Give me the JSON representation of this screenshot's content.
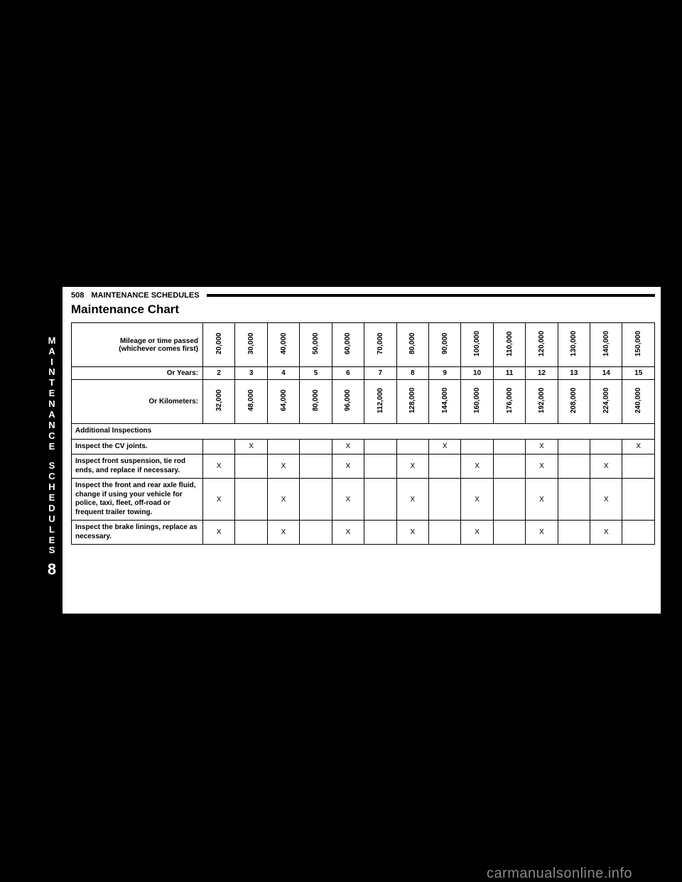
{
  "side_tab": {
    "word1": [
      "M",
      "A",
      "I",
      "N",
      "T",
      "E",
      "N",
      "A",
      "N",
      "C",
      "E"
    ],
    "word2": [
      "S",
      "C",
      "H",
      "E",
      "D",
      "U",
      "L",
      "E",
      "S"
    ],
    "section_number": "8"
  },
  "header": {
    "page_number": "508",
    "section_name": "MAINTENANCE SCHEDULES"
  },
  "title": "Maintenance Chart",
  "table": {
    "row_labels": {
      "mileage": "Mileage or time passed\n(whichever comes first)",
      "years": "Or Years:",
      "km": "Or Kilometers:",
      "additional": "Additional Inspections",
      "cv": "Inspect the CV joints.",
      "susp": "Inspect front suspension, tie rod ends, and replace if necessary.",
      "axle": "Inspect the front and rear axle fluid, change if using your vehicle for police, taxi, fleet, off-road or frequent trailer towing.",
      "brake": "Inspect the brake linings, replace as necessary."
    },
    "mileage_values": [
      "20,000",
      "30,000",
      "40,000",
      "50,000",
      "60,000",
      "70,000",
      "80,000",
      "90,000",
      "100,000",
      "110,000",
      "120,000",
      "130,000",
      "140,000",
      "150,000"
    ],
    "years_values": [
      "2",
      "3",
      "4",
      "5",
      "6",
      "7",
      "8",
      "9",
      "10",
      "11",
      "12",
      "13",
      "14",
      "15"
    ],
    "km_values": [
      "32,000",
      "48,000",
      "64,000",
      "80,000",
      "96,000",
      "112,000",
      "128,000",
      "144,000",
      "160,000",
      "176,000",
      "192,000",
      "208,000",
      "224,000",
      "240,000"
    ],
    "cv_marks": [
      "",
      "X",
      "",
      "",
      "X",
      "",
      "",
      "X",
      "",
      "",
      "X",
      "",
      "",
      "X"
    ],
    "susp_marks": [
      "X",
      "",
      "X",
      "",
      "X",
      "",
      "X",
      "",
      "X",
      "",
      "X",
      "",
      "X",
      ""
    ],
    "axle_marks": [
      "X",
      "",
      "X",
      "",
      "X",
      "",
      "X",
      "",
      "X",
      "",
      "X",
      "",
      "X",
      ""
    ],
    "brake_marks": [
      "X",
      "",
      "X",
      "",
      "X",
      "",
      "X",
      "",
      "X",
      "",
      "X",
      "",
      "X",
      ""
    ]
  },
  "footer": "carmanualsonline.info",
  "colors": {
    "page_bg": "#ffffff",
    "outer_bg": "#000000",
    "border": "#000000",
    "footer_text": "#888888"
  }
}
